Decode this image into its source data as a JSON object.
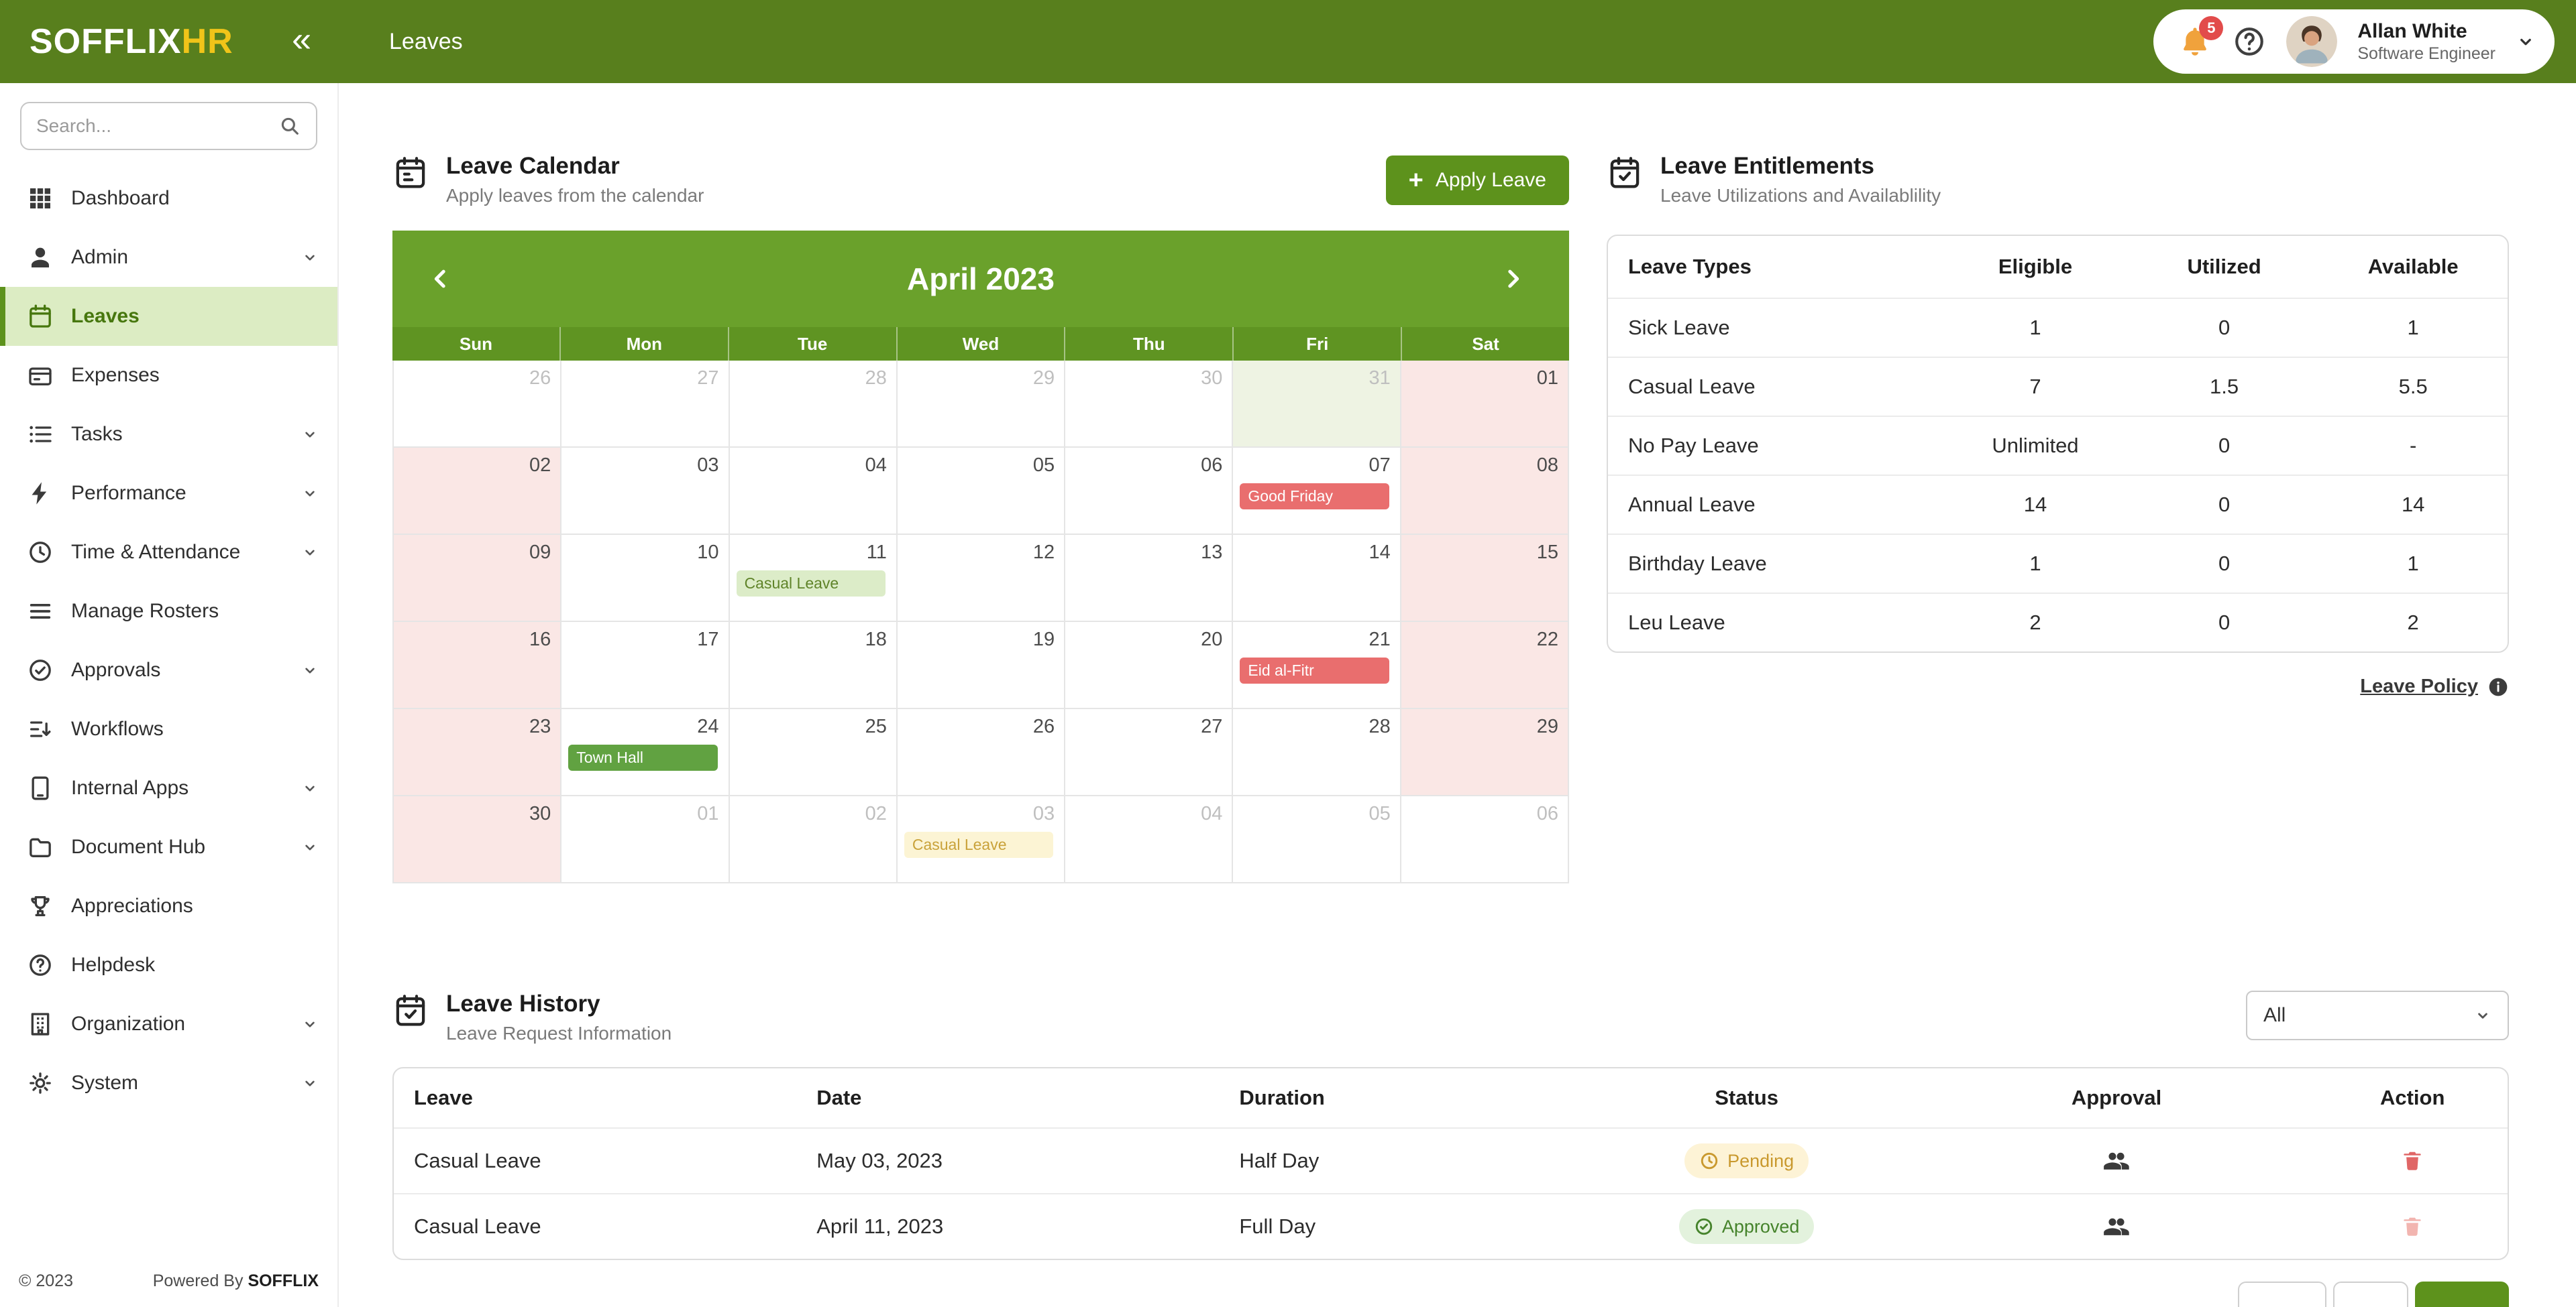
{
  "brand": {
    "name": "SOFFLIX",
    "suffix": "HR",
    "collapse_glyph": "«"
  },
  "header": {
    "page_title": "Leaves",
    "notification_count": "5",
    "user": {
      "name": "Allan White",
      "role": "Software Engineer"
    }
  },
  "sidebar": {
    "search_placeholder": "Search...",
    "items": [
      {
        "label": "Dashboard",
        "icon": "grid",
        "expandable": false,
        "active": false
      },
      {
        "label": "Admin",
        "icon": "user",
        "expandable": true,
        "active": false
      },
      {
        "label": "Leaves",
        "icon": "calendar",
        "expandable": false,
        "active": true
      },
      {
        "label": "Expenses",
        "icon": "wallet",
        "expandable": false,
        "active": false
      },
      {
        "label": "Tasks",
        "icon": "tasks",
        "expandable": true,
        "active": false
      },
      {
        "label": "Performance",
        "icon": "bolt",
        "expandable": true,
        "active": false
      },
      {
        "label": "Time & Attendance",
        "icon": "clock",
        "expandable": true,
        "active": false
      },
      {
        "label": "Manage Rosters",
        "icon": "rosters",
        "expandable": false,
        "active": false
      },
      {
        "label": "Approvals",
        "icon": "check-circle",
        "expandable": true,
        "active": false
      },
      {
        "label": "Workflows",
        "icon": "workflow",
        "expandable": false,
        "active": false
      },
      {
        "label": "Internal Apps",
        "icon": "apps",
        "expandable": true,
        "active": false
      },
      {
        "label": "Document Hub",
        "icon": "folder",
        "expandable": true,
        "active": false
      },
      {
        "label": "Appreciations",
        "icon": "trophy",
        "expandable": false,
        "active": false
      },
      {
        "label": "Helpdesk",
        "icon": "helpdesk",
        "expandable": false,
        "active": false
      },
      {
        "label": "Organization",
        "icon": "building",
        "expandable": true,
        "active": false
      },
      {
        "label": "System",
        "icon": "gear",
        "expandable": true,
        "active": false
      }
    ],
    "footer": {
      "copyright": "© 2023",
      "powered_by": "Powered By",
      "powered_brand": "SOFFLIX"
    }
  },
  "calendar": {
    "title": "Leave Calendar",
    "subtitle": "Apply leaves from the calendar",
    "apply_button": "Apply Leave",
    "month": "April 2023",
    "day_headers": [
      "Sun",
      "Mon",
      "Tue",
      "Wed",
      "Thu",
      "Fri",
      "Sat"
    ],
    "cells": [
      {
        "day": "26",
        "muted": true
      },
      {
        "day": "27",
        "muted": true
      },
      {
        "day": "28",
        "muted": true
      },
      {
        "day": "29",
        "muted": true
      },
      {
        "day": "30",
        "muted": true
      },
      {
        "day": "31",
        "muted": true,
        "highlight": true
      },
      {
        "day": "01",
        "weekend": true
      },
      {
        "day": "02",
        "weekend": true
      },
      {
        "day": "03"
      },
      {
        "day": "04"
      },
      {
        "day": "05"
      },
      {
        "day": "06"
      },
      {
        "day": "07",
        "event": {
          "label": "Good Friday",
          "type": "holiday"
        }
      },
      {
        "day": "08",
        "weekend": true
      },
      {
        "day": "09",
        "weekend": true
      },
      {
        "day": "10"
      },
      {
        "day": "11",
        "event": {
          "label": "Casual Leave",
          "type": "leave-approved"
        }
      },
      {
        "day": "12"
      },
      {
        "day": "13"
      },
      {
        "day": "14"
      },
      {
        "day": "15",
        "weekend": true
      },
      {
        "day": "16",
        "weekend": true
      },
      {
        "day": "17"
      },
      {
        "day": "18"
      },
      {
        "day": "19"
      },
      {
        "day": "20"
      },
      {
        "day": "21",
        "event": {
          "label": "Eid al-Fitr",
          "type": "holiday"
        }
      },
      {
        "day": "22",
        "weekend": true
      },
      {
        "day": "23",
        "weekend": true
      },
      {
        "day": "24",
        "event": {
          "label": "Town Hall",
          "type": "company"
        }
      },
      {
        "day": "25"
      },
      {
        "day": "26"
      },
      {
        "day": "27"
      },
      {
        "day": "28"
      },
      {
        "day": "29",
        "weekend": true
      },
      {
        "day": "30",
        "weekend": true
      },
      {
        "day": "01",
        "muted": true
      },
      {
        "day": "02",
        "muted": true
      },
      {
        "day": "03",
        "muted": true,
        "event": {
          "label": "Casual Leave",
          "type": "leave-pending"
        }
      },
      {
        "day": "04",
        "muted": true
      },
      {
        "day": "05",
        "muted": true
      },
      {
        "day": "06",
        "muted": true
      }
    ]
  },
  "entitlements": {
    "title": "Leave Entitlements",
    "subtitle": "Leave Utilizations and Availablility",
    "columns": [
      "Leave Types",
      "Eligible",
      "Utilized",
      "Available"
    ],
    "rows": [
      [
        "Sick Leave",
        "1",
        "0",
        "1"
      ],
      [
        "Casual Leave",
        "7",
        "1.5",
        "5.5"
      ],
      [
        "No Pay Leave",
        "Unlimited",
        "0",
        "-"
      ],
      [
        "Annual Leave",
        "14",
        "0",
        "14"
      ],
      [
        "Birthday Leave",
        "1",
        "0",
        "1"
      ],
      [
        "Leu Leave",
        "2",
        "0",
        "2"
      ]
    ],
    "policy_link": "Leave Policy"
  },
  "history": {
    "title": "Leave History",
    "subtitle": "Leave Request Information",
    "filter_value": "All",
    "columns": [
      "Leave",
      "Date",
      "Duration",
      "Status",
      "Approval",
      "Action"
    ],
    "rows": [
      {
        "leave": "Casual Leave",
        "date": "May 03, 2023",
        "duration": "Half Day",
        "status": "Pending",
        "status_type": "pending"
      },
      {
        "leave": "Casual Leave",
        "date": "April 11, 2023",
        "duration": "Full Day",
        "status": "Approved",
        "status_type": "approved"
      }
    ]
  },
  "colors": {
    "brand_green": "#587f1d",
    "calendar_green": "#6aa12b",
    "day_header_green": "#5f9422",
    "accent_yellow": "#f0c419",
    "holiday_red": "#e96e6e",
    "weekend_pink": "#fae7e5",
    "pending_text": "#c9992e",
    "approved_text": "#45832b"
  }
}
